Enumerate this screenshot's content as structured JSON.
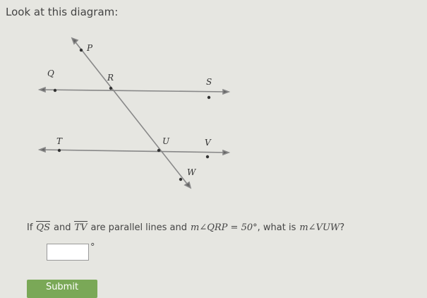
{
  "prompt": "Look at this diagram:",
  "diagram": {
    "points": [
      "P",
      "Q",
      "R",
      "S",
      "T",
      "U",
      "V",
      "W"
    ]
  },
  "question": {
    "parts": [
      "If",
      "QS",
      "and",
      "TV",
      "are parallel lines and",
      "m∠QRP = 50°",
      ", what is",
      "m∠VUW",
      "?"
    ]
  },
  "answer": {
    "unit": "°"
  },
  "button": "Submit"
}
